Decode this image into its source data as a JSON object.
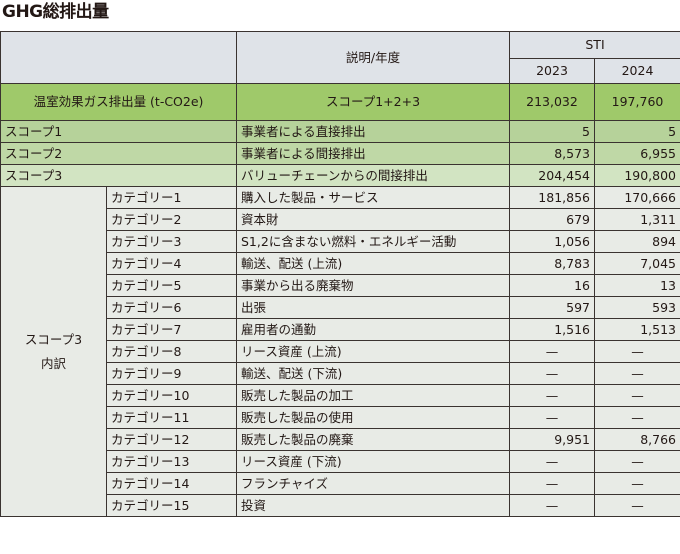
{
  "title": "GHG総排出量",
  "header": {
    "description_col": "説明/年度",
    "group": "STI",
    "years": [
      "2023",
      "2024"
    ]
  },
  "total": {
    "label": "温室効果ガス排出量 (t-CO2e)",
    "description": "スコープ1+2+3",
    "values": [
      "213,032",
      "197,760"
    ]
  },
  "scopes": [
    {
      "label": "スコープ1",
      "description": "事業者による直接排出",
      "values": [
        "5",
        "5"
      ]
    },
    {
      "label": "スコープ2",
      "description": "事業者による間接排出",
      "values": [
        "8,573",
        "6,955"
      ]
    },
    {
      "label": "スコープ3",
      "description": "バリューチェーンからの間接排出",
      "values": [
        "204,454",
        "190,800"
      ]
    }
  ],
  "breakdown": {
    "label_line1": "スコープ3",
    "label_line2": "内訳",
    "categories": [
      {
        "label": "カテゴリー1",
        "description": "購入した製品・サービス",
        "values": [
          "181,856",
          "170,666"
        ]
      },
      {
        "label": "カテゴリー2",
        "description": "資本財",
        "values": [
          "679",
          "1,311"
        ]
      },
      {
        "label": "カテゴリー3",
        "description": "S1,2に含まない燃料・エネルギー活動",
        "values": [
          "1,056",
          "894"
        ]
      },
      {
        "label": "カテゴリー4",
        "description": "輸送、配送 (上流)",
        "values": [
          "8,783",
          "7,045"
        ]
      },
      {
        "label": "カテゴリー5",
        "description": "事業から出る廃棄物",
        "values": [
          "16",
          "13"
        ]
      },
      {
        "label": "カテゴリー6",
        "description": "出張",
        "values": [
          "597",
          "593"
        ]
      },
      {
        "label": "カテゴリー7",
        "description": "雇用者の通勤",
        "values": [
          "1,516",
          "1,513"
        ]
      },
      {
        "label": "カテゴリー8",
        "description": "リース資産 (上流)",
        "values": [
          "—",
          "—"
        ]
      },
      {
        "label": "カテゴリー9",
        "description": "輸送、配送 (下流)",
        "values": [
          "—",
          "—"
        ]
      },
      {
        "label": "カテゴリー10",
        "description": "販売した製品の加工",
        "values": [
          "—",
          "—"
        ]
      },
      {
        "label": "カテゴリー11",
        "description": "販売した製品の使用",
        "values": [
          "—",
          "—"
        ]
      },
      {
        "label": "カテゴリー12",
        "description": "販売した製品の廃棄",
        "values": [
          "9,951",
          "8,766"
        ]
      },
      {
        "label": "カテゴリー13",
        "description": "リース資産 (下流)",
        "values": [
          "—",
          "—"
        ]
      },
      {
        "label": "カテゴリー14",
        "description": "フランチャイズ",
        "values": [
          "—",
          "—"
        ]
      },
      {
        "label": "カテゴリー15",
        "description": "投資",
        "values": [
          "—",
          "—"
        ]
      }
    ]
  },
  "colors": {
    "header_bg": "#dfe3e8",
    "total_bg": "#9fc96a",
    "scope1_bg": "#b6d29a",
    "scope2_bg": "#bfd8a6",
    "scope3_bg": "#d2e4c2",
    "category_bg": "#e8ebe6",
    "border": "#3a3330"
  }
}
